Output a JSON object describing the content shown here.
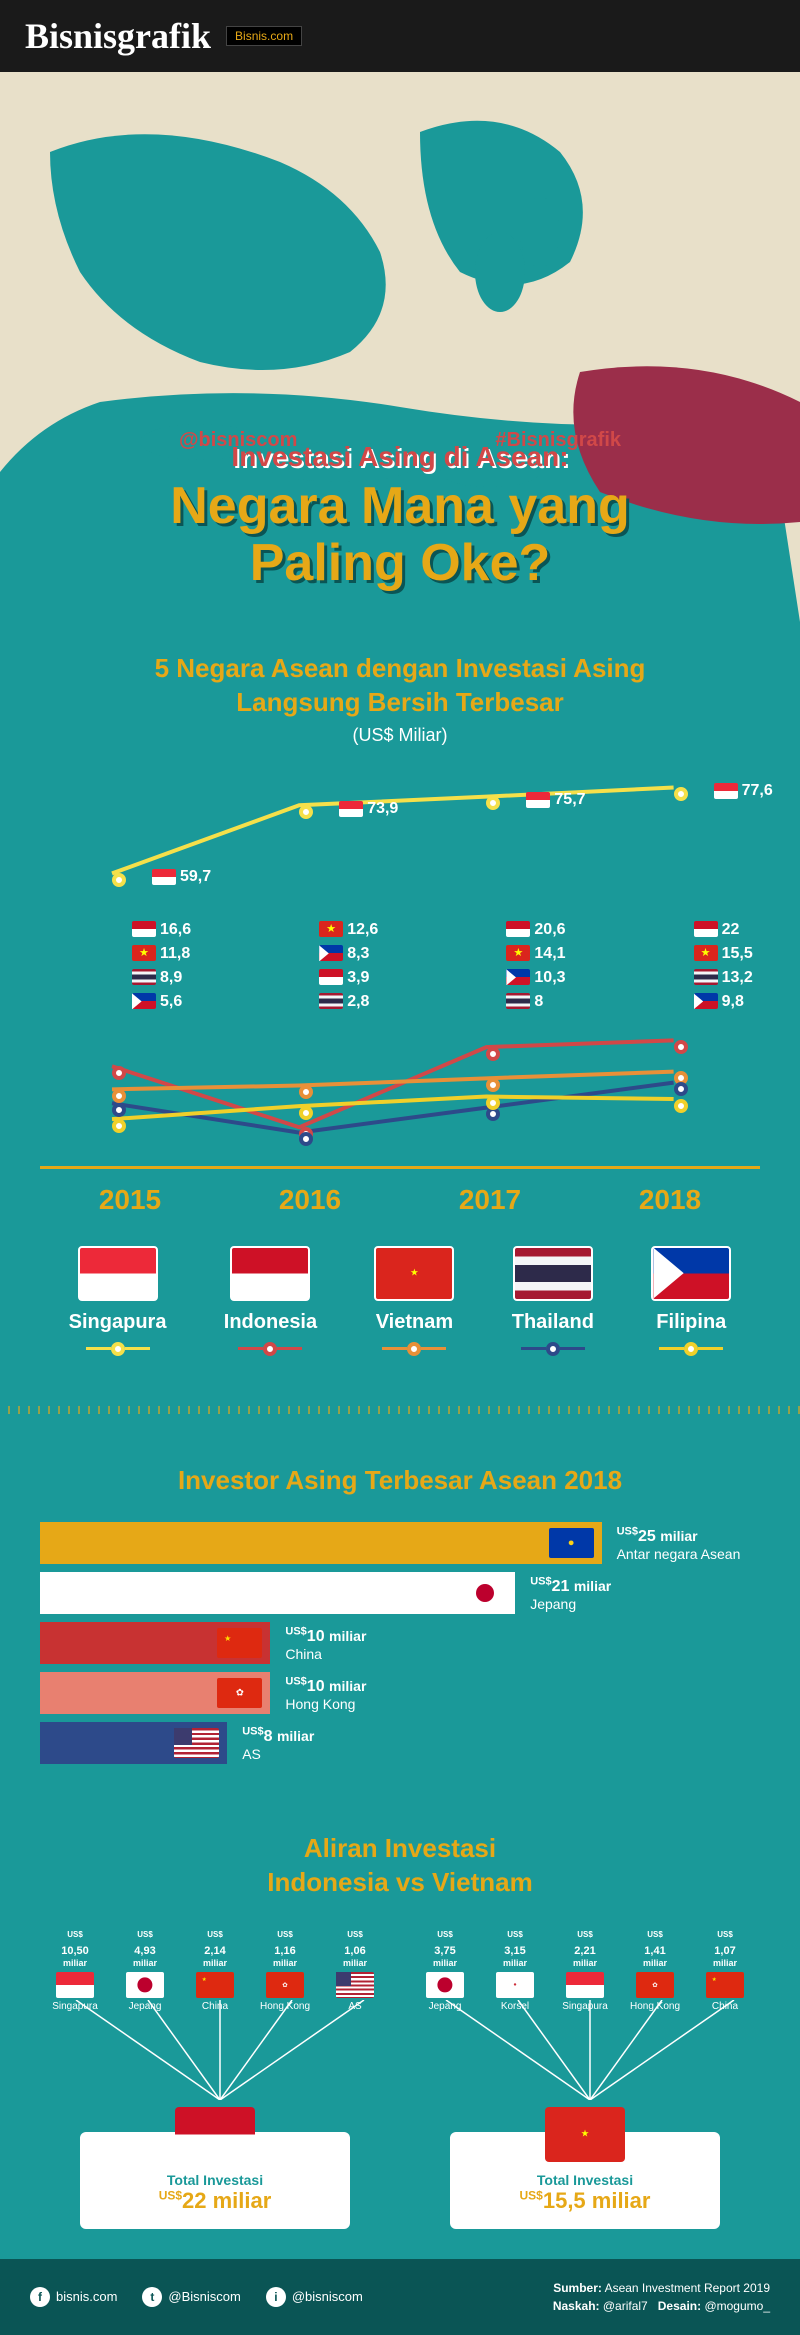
{
  "header": {
    "logo": "Bisnisgrafik",
    "sublogo": "Bisnis.com"
  },
  "hero": {
    "hashtag1": "@bisniscom",
    "hashtag2": "#Bisnisgrafik",
    "subtitle": "Investasi Asing di Asean:",
    "title_line1": "Negara Mana yang",
    "title_line2": "Paling Oke?",
    "map_colors": {
      "sea": "#e8e0c9",
      "land": "#1a9999",
      "accent": "#9b2e4a"
    }
  },
  "colors": {
    "bg": "#1a9999",
    "gold": "#e6a817",
    "dark": "#0a5555",
    "singapore": "#f5e04a",
    "indonesia": "#d14848",
    "vietnam": "#e89038",
    "thailand": "#2d4a8a",
    "philippines": "#f0d02a"
  },
  "section1": {
    "title_line1": "5 Negara Asean dengan Investasi Asing",
    "title_line2": "Langsung Bersih Terbesar",
    "unit": "(US$ Miliar)",
    "years": [
      "2015",
      "2016",
      "2017",
      "2018"
    ],
    "series": [
      {
        "country": "Singapura",
        "flag": "sg",
        "color": "#f5e04a",
        "values": [
          59.7,
          73.9,
          75.7,
          77.6
        ],
        "labels": [
          "59,7",
          "73,9",
          "75,7",
          "77,6"
        ]
      },
      {
        "country": "Indonesia",
        "flag": "id",
        "color": "#d14848",
        "values": [
          16.6,
          3.9,
          20.6,
          22
        ],
        "labels": [
          "16,6",
          "3,9",
          "20,6",
          "22"
        ]
      },
      {
        "country": "Vietnam",
        "flag": "vn",
        "color": "#e89038",
        "values": [
          11.8,
          12.6,
          14.1,
          15.5
        ],
        "labels": [
          "11,8",
          "12,6",
          "14,1",
          "15,5"
        ]
      },
      {
        "country": "Thailand",
        "flag": "th",
        "color": "#2d4a8a",
        "values": [
          8.9,
          2.8,
          8,
          13.2
        ],
        "labels": [
          "8,9",
          "2,8",
          "8",
          "13,2"
        ]
      },
      {
        "country": "Filipina",
        "flag": "ph",
        "color": "#f0d02a",
        "values": [
          5.6,
          8.3,
          10.3,
          9.8
        ],
        "labels": [
          "5,6",
          "8,3",
          "10,3",
          "9,8"
        ]
      }
    ],
    "year_labels": {
      "2015": [
        {
          "flag": "id",
          "text": "16,6"
        },
        {
          "flag": "vn",
          "text": "11,8"
        },
        {
          "flag": "th",
          "text": "8,9"
        },
        {
          "flag": "ph",
          "text": "5,6"
        }
      ],
      "2016": [
        {
          "flag": "vn",
          "text": "12,6"
        },
        {
          "flag": "ph",
          "text": "8,3"
        },
        {
          "flag": "id",
          "text": "3,9"
        },
        {
          "flag": "th",
          "text": "2,8"
        }
      ],
      "2017": [
        {
          "flag": "id",
          "text": "20,6"
        },
        {
          "flag": "vn",
          "text": "14,1"
        },
        {
          "flag": "ph",
          "text": "10,3"
        },
        {
          "flag": "th",
          "text": "8"
        }
      ],
      "2018": [
        {
          "flag": "id",
          "text": "22"
        },
        {
          "flag": "vn",
          "text": "15,5"
        },
        {
          "flag": "th",
          "text": "13,2"
        },
        {
          "flag": "ph",
          "text": "9,8"
        }
      ]
    },
    "chart": {
      "ylim_lower": [
        0,
        25
      ],
      "ylim_upper": [
        55,
        80
      ]
    }
  },
  "section2": {
    "title": "Investor Asing Terbesar Asean 2018",
    "bars": [
      {
        "name": "Antar negara Asean",
        "flag": "asean",
        "value": 25,
        "value_text": "25",
        "color": "#e6a817",
        "width_pct": 78
      },
      {
        "name": "Jepang",
        "flag": "jp",
        "value": 21,
        "value_text": "21",
        "color": "#ffffff",
        "width_pct": 66
      },
      {
        "name": "China",
        "flag": "cn",
        "value": 10,
        "value_text": "10",
        "color": "#c83232",
        "width_pct": 32
      },
      {
        "name": "Hong Kong",
        "flag": "hk",
        "value": 10,
        "value_text": "10",
        "color": "#e88070",
        "width_pct": 32
      },
      {
        "name": "AS",
        "flag": "us",
        "value": 8,
        "value_text": "8",
        "color": "#2d4a8a",
        "width_pct": 26
      }
    ],
    "currency_prefix": "US$",
    "unit": "miliar"
  },
  "section3": {
    "title_line1": "Aliran Investasi",
    "title_line2": "Indonesia vs Vietnam",
    "indonesia": {
      "flag": "id",
      "total_label": "Total Investasi",
      "total_value": "22 miliar",
      "sources": [
        {
          "name": "Singapura",
          "flag": "sg",
          "value": "10,50"
        },
        {
          "name": "Jepang",
          "flag": "jp",
          "value": "4,93"
        },
        {
          "name": "China",
          "flag": "cn",
          "value": "2,14"
        },
        {
          "name": "Hong Kong",
          "flag": "hk",
          "value": "1,16"
        },
        {
          "name": "AS",
          "flag": "us",
          "value": "1,06"
        }
      ]
    },
    "vietnam": {
      "flag": "vn",
      "total_label": "Total Investasi",
      "total_value": "15,5 miliar",
      "sources": [
        {
          "name": "Jepang",
          "flag": "jp",
          "value": "3,75"
        },
        {
          "name": "Korsel",
          "flag": "kr",
          "value": "3,15"
        },
        {
          "name": "Singapura",
          "flag": "sg",
          "value": "2,21"
        },
        {
          "name": "Hong Kong",
          "flag": "hk",
          "value": "1,41"
        },
        {
          "name": "China",
          "flag": "cn",
          "value": "1,07"
        }
      ]
    },
    "currency_prefix": "US$",
    "unit": "miliar"
  },
  "footer": {
    "socials": [
      {
        "icon": "f",
        "handle": "bisnis.com"
      },
      {
        "icon": "t",
        "handle": "@Bisniscom"
      },
      {
        "icon": "i",
        "handle": "@bisniscom"
      }
    ],
    "source_label": "Sumber:",
    "source": "Asean Investment Report 2019",
    "naskah_label": "Naskah:",
    "naskah": "@arifal7",
    "desain_label": "Desain:",
    "desain": "@mogumo_"
  }
}
